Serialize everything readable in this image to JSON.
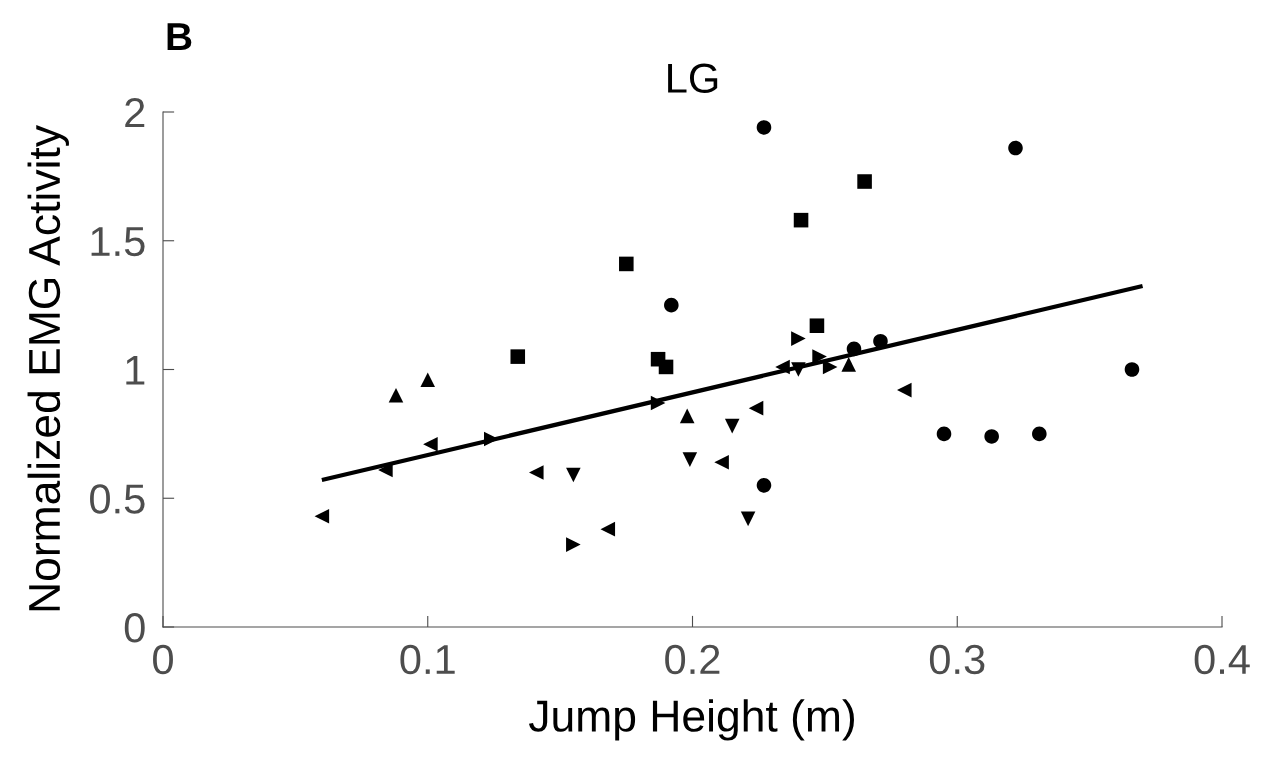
{
  "chart_data": {
    "type": "scatter",
    "title": "LG",
    "xlabel": "Jump Height (m)",
    "ylabel": "Normalized EMG Activity",
    "annotations": [
      "B"
    ],
    "xlim": [
      0,
      0.4
    ],
    "ylim": [
      0,
      2
    ],
    "xticks": [
      0,
      0.1,
      0.2,
      0.3,
      0.4
    ],
    "yticks": [
      0,
      0.5,
      1,
      1.5,
      2
    ],
    "grid": false,
    "legend": false,
    "series": [
      {
        "color": "#000000",
        "marker": "circle",
        "x": [
          0.227,
          0.322,
          0.192,
          0.261,
          0.271,
          0.366,
          0.295,
          0.313,
          0.331,
          0.227
        ],
        "values": [
          1.94,
          1.86,
          1.25,
          1.08,
          1.11,
          1.0,
          0.75,
          0.74,
          0.75,
          0.55
        ]
      },
      {
        "color": "#000000",
        "marker": "square",
        "x": [
          0.134,
          0.175,
          0.187,
          0.19,
          0.241,
          0.265,
          0.247
        ],
        "values": [
          1.05,
          1.41,
          1.04,
          1.01,
          1.58,
          1.73,
          1.17
        ]
      },
      {
        "color": "#000000",
        "marker": "triangle-up",
        "x": [
          0.088,
          0.1,
          0.198,
          0.259
        ],
        "values": [
          0.9,
          0.96,
          0.82,
          1.02
        ]
      },
      {
        "color": "#000000",
        "marker": "triangle-down",
        "x": [
          0.155,
          0.199,
          0.215,
          0.221,
          0.24
        ],
        "values": [
          0.59,
          0.65,
          0.78,
          0.42,
          1.0
        ]
      },
      {
        "color": "#000000",
        "marker": "triangle-left",
        "x": [
          0.06,
          0.084,
          0.101,
          0.141,
          0.168,
          0.211,
          0.224,
          0.234,
          0.28
        ],
        "values": [
          0.43,
          0.61,
          0.71,
          0.6,
          0.38,
          0.64,
          0.85,
          1.01,
          0.92
        ]
      },
      {
        "color": "#000000",
        "marker": "triangle-right",
        "x": [
          0.124,
          0.187,
          0.155,
          0.24,
          0.248,
          0.252
        ],
        "values": [
          0.73,
          0.87,
          0.32,
          1.12,
          1.05,
          1.01
        ]
      },
      {
        "type": "line",
        "color": "#000000",
        "line_style": "solid",
        "marker": "none",
        "x": [
          0.06,
          0.37
        ],
        "values": [
          0.571,
          1.324
        ]
      }
    ]
  }
}
